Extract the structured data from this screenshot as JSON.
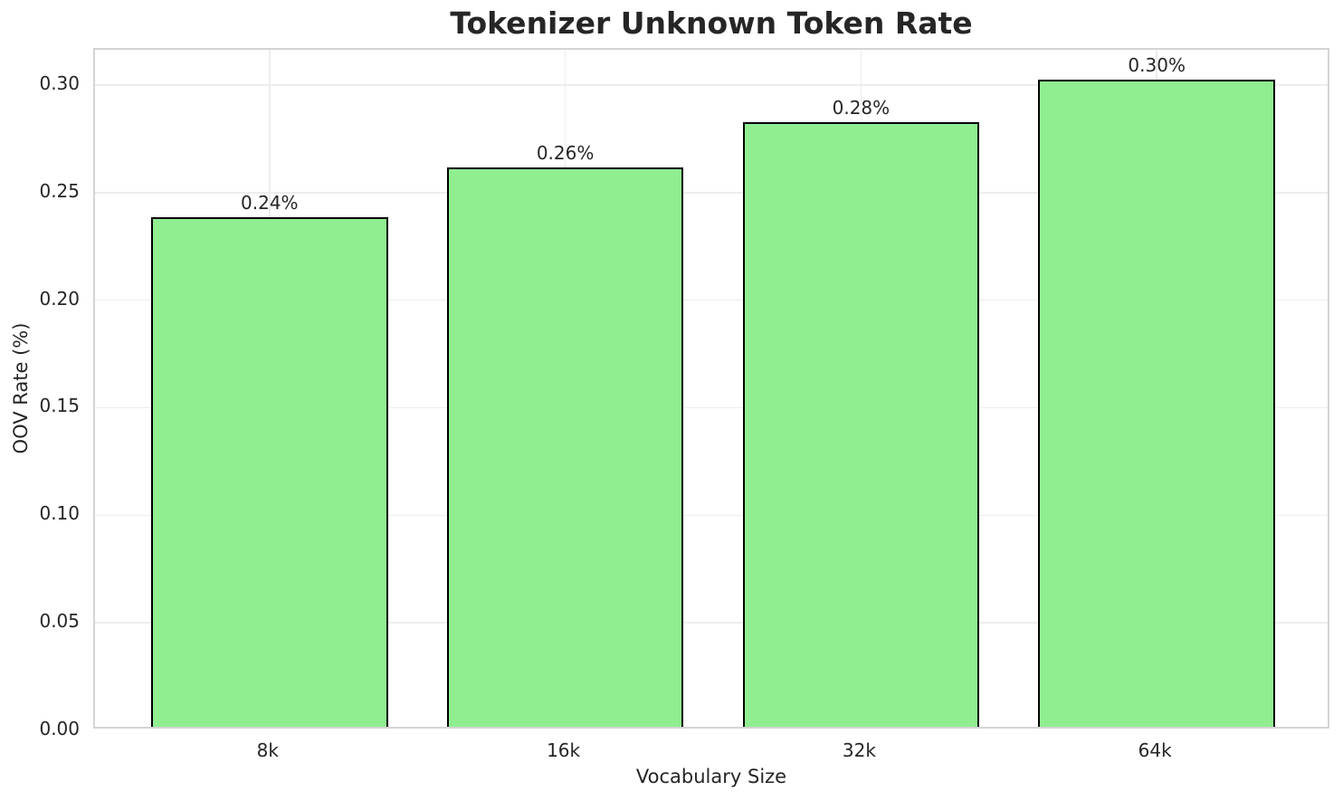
{
  "chart_data": {
    "type": "bar",
    "title": "Tokenizer Unknown Token Rate",
    "xlabel": "Vocabulary Size",
    "ylabel": "OOV Rate (%)",
    "categories": [
      "8k",
      "16k",
      "32k",
      "64k"
    ],
    "values": [
      0.237,
      0.26,
      0.281,
      0.301
    ],
    "bar_labels": [
      "0.24%",
      "0.26%",
      "0.28%",
      "0.30%"
    ],
    "yticks": [
      0.0,
      0.05,
      0.1,
      0.15,
      0.2,
      0.25,
      0.3
    ],
    "ytick_labels": [
      "0.00",
      "0.05",
      "0.10",
      "0.15",
      "0.20",
      "0.25",
      "0.30"
    ],
    "ylim": [
      0,
      0.3164
    ],
    "grid": true,
    "legend": null,
    "bar_color": "#90EE90",
    "bar_edge_color": "#000000",
    "grid_color": "#ededed",
    "spine_color": "#d4d4d4",
    "text_color": "#262626"
  }
}
